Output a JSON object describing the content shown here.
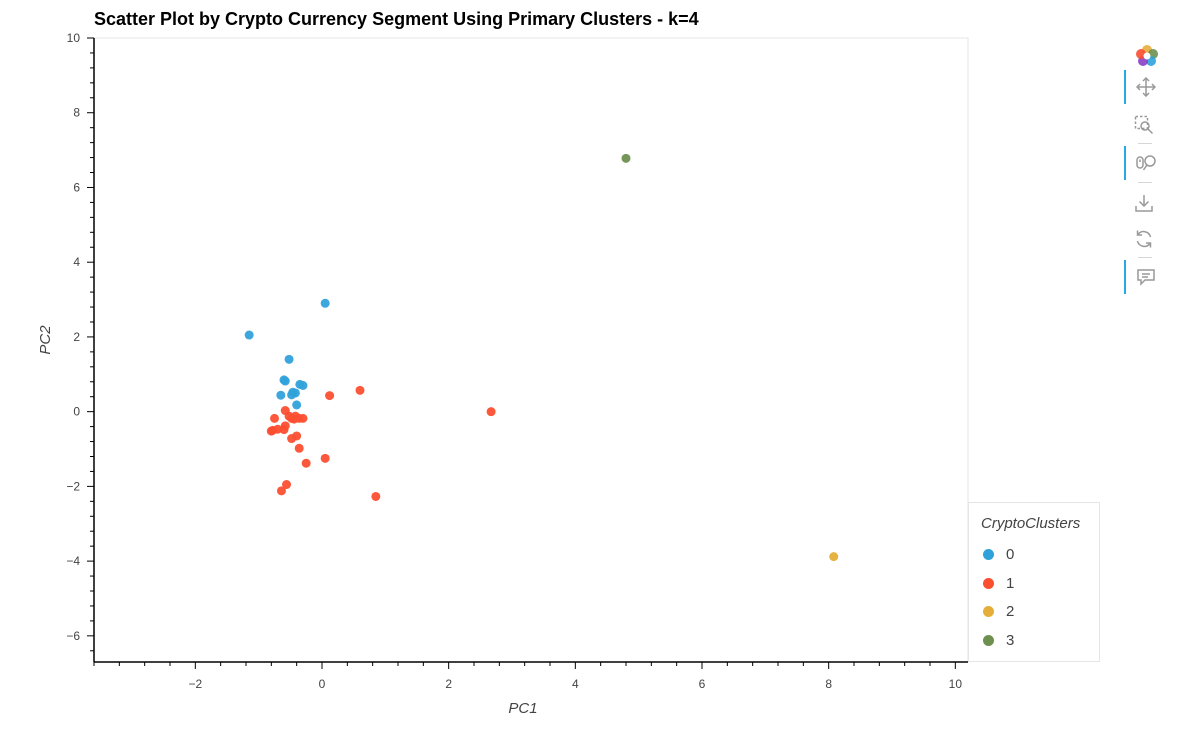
{
  "chart_data": {
    "type": "scatter",
    "title": "Scatter Plot by Crypto Currency Segment Using Primary Clusters - k=4",
    "xlabel": "PC1",
    "ylabel": "PC2",
    "xlim": [
      -3.6,
      10.2
    ],
    "ylim": [
      -6.7,
      10
    ],
    "x_ticks": [
      -2,
      0,
      2,
      4,
      6,
      8,
      10
    ],
    "y_ticks": [
      -6,
      -4,
      -2,
      0,
      2,
      4,
      6,
      8,
      10
    ],
    "x_tick_labels": [
      "−2",
      "0",
      "2",
      "4",
      "6",
      "8",
      "10"
    ],
    "y_tick_labels": [
      "−6",
      "−4",
      "−2",
      "0",
      "2",
      "4",
      "6",
      "8",
      "10"
    ],
    "grid": false,
    "legend": {
      "title": "CryptoClusters",
      "placement": "bottom-right outside",
      "entries": [
        "0",
        "1",
        "2",
        "3"
      ]
    },
    "series": [
      {
        "name": "0",
        "color": "#30a2da",
        "points": [
          [
            -1.15,
            2.05
          ],
          [
            0.05,
            2.9
          ],
          [
            -0.52,
            1.4
          ],
          [
            -0.6,
            0.85
          ],
          [
            -0.58,
            0.82
          ],
          [
            -0.35,
            0.73
          ],
          [
            -0.3,
            0.7
          ],
          [
            -0.46,
            0.52
          ],
          [
            -0.48,
            0.45
          ],
          [
            -0.42,
            0.5
          ],
          [
            -0.65,
            0.44
          ],
          [
            -0.4,
            0.18
          ]
        ]
      },
      {
        "name": "1",
        "color": "#fc4f30",
        "points": [
          [
            -0.58,
            0.03
          ],
          [
            -0.75,
            -0.18
          ],
          [
            -0.52,
            -0.12
          ],
          [
            -0.48,
            -0.18
          ],
          [
            -0.44,
            -0.2
          ],
          [
            -0.42,
            -0.12
          ],
          [
            -0.36,
            -0.18
          ],
          [
            -0.3,
            -0.18
          ],
          [
            -0.58,
            -0.38
          ],
          [
            -0.6,
            -0.48
          ],
          [
            -0.7,
            -0.47
          ],
          [
            -0.78,
            -0.5
          ],
          [
            -0.8,
            -0.52
          ],
          [
            -0.4,
            -0.65
          ],
          [
            -0.48,
            -0.72
          ],
          [
            -0.36,
            -0.98
          ],
          [
            0.05,
            -1.25
          ],
          [
            -0.25,
            -1.38
          ],
          [
            -0.56,
            -1.95
          ],
          [
            -0.64,
            -2.12
          ],
          [
            0.85,
            -2.27
          ],
          [
            0.12,
            0.43
          ],
          [
            0.6,
            0.57
          ],
          [
            2.67,
            0.0
          ]
        ]
      },
      {
        "name": "2",
        "color": "#e5ae38",
        "points": [
          [
            8.08,
            -3.88
          ]
        ]
      },
      {
        "name": "3",
        "color": "#6d904f",
        "points": [
          [
            4.8,
            6.78
          ]
        ]
      }
    ]
  },
  "toolbar": {
    "tools": [
      "bokeh-logo-icon",
      "pan-icon",
      "box-zoom-icon",
      "wheel-zoom-icon",
      "save-icon",
      "reset-icon",
      "hover-icon"
    ]
  }
}
